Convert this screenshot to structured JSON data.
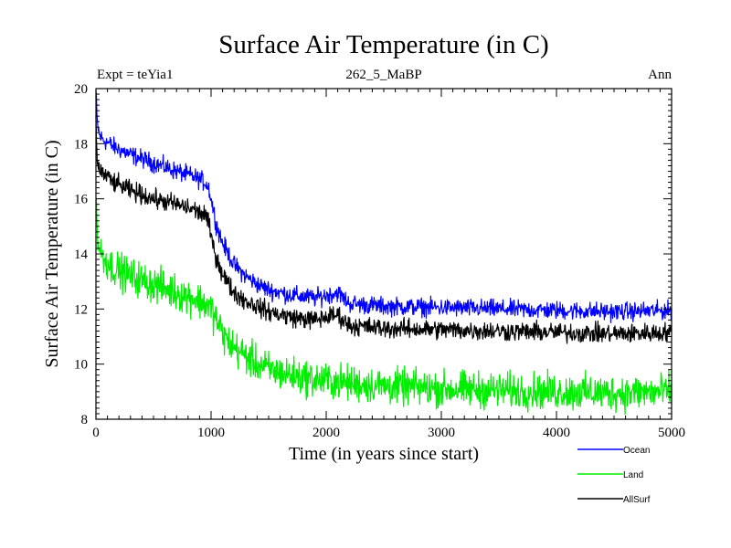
{
  "chart_data": {
    "type": "line",
    "title": "Surface Air Temperature (in C)",
    "subtitle": "262_5_MaBP",
    "left_note": "Expt = teYia1",
    "right_note": "Ann",
    "xlabel": "Time (in years since start)",
    "ylabel": "Surface Air Temperature (in C)",
    "xlim": [
      0,
      5000
    ],
    "ylim": [
      8,
      20
    ],
    "xticks": [
      0,
      1000,
      2000,
      3000,
      4000,
      5000
    ],
    "yticks": [
      8,
      10,
      12,
      14,
      16,
      18,
      20
    ],
    "grid": false,
    "legend_position": "bottom-right",
    "series": [
      {
        "name": "Ocean",
        "color": "#0000ff",
        "noise": 0.16,
        "x": [
          0,
          10,
          30,
          60,
          100,
          150,
          300,
          500,
          700,
          850,
          950,
          980,
          1000,
          1050,
          1100,
          1150,
          1200,
          1300,
          1400,
          1500,
          1700,
          1900,
          2100,
          2200,
          2500,
          3000,
          3500,
          4000,
          4500,
          5000
        ],
        "values": [
          19.9,
          18.8,
          18.3,
          18.15,
          18.05,
          17.9,
          17.6,
          17.3,
          17.0,
          16.8,
          16.6,
          16.4,
          16.0,
          15.0,
          14.4,
          14.0,
          13.6,
          13.2,
          12.9,
          12.7,
          12.5,
          12.4,
          12.6,
          12.2,
          12.1,
          12.05,
          12.0,
          11.95,
          11.9,
          11.95
        ]
      },
      {
        "name": "Land",
        "color": "#00ee00",
        "noise": 0.32,
        "x": [
          0,
          10,
          30,
          60,
          100,
          150,
          300,
          500,
          700,
          850,
          950,
          1000,
          1050,
          1100,
          1150,
          1200,
          1300,
          1400,
          1500,
          1700,
          1900,
          2100,
          2500,
          3000,
          3500,
          4000,
          4500,
          5000
        ],
        "values": [
          16.3,
          14.8,
          14.2,
          13.9,
          13.7,
          13.5,
          13.2,
          12.9,
          12.6,
          12.4,
          12.2,
          12.0,
          11.6,
          11.1,
          10.8,
          10.6,
          10.3,
          10.0,
          9.8,
          9.6,
          9.45,
          9.35,
          9.2,
          9.1,
          9.05,
          9.0,
          8.95,
          9.0
        ]
      },
      {
        "name": "AllSurf",
        "color": "#000000",
        "noise": 0.17,
        "x": [
          0,
          10,
          30,
          60,
          100,
          150,
          300,
          500,
          700,
          850,
          950,
          980,
          1000,
          1050,
          1100,
          1150,
          1200,
          1300,
          1400,
          1500,
          1700,
          1900,
          2100,
          2200,
          2500,
          3000,
          3500,
          4000,
          4500,
          5000
        ],
        "values": [
          18.7,
          17.4,
          17.1,
          16.9,
          16.8,
          16.6,
          16.3,
          16.0,
          15.8,
          15.6,
          15.4,
          15.1,
          14.6,
          13.8,
          13.3,
          12.9,
          12.6,
          12.3,
          12.1,
          11.9,
          11.7,
          11.6,
          11.8,
          11.4,
          11.3,
          11.25,
          11.2,
          11.15,
          11.1,
          11.15
        ]
      }
    ]
  }
}
